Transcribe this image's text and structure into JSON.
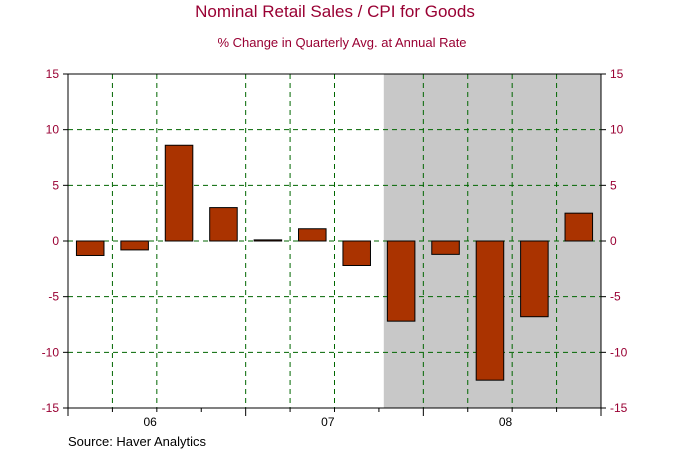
{
  "chart_data": {
    "type": "bar",
    "title": "Nominal Retail Sales / CPI for Goods",
    "subtitle": "% Change in Quarterly Avg. at Annual Rate",
    "source": "Source: Haver Analytics",
    "categories": [
      "2006Q1",
      "2006Q2",
      "2006Q3",
      "2006Q4",
      "2007Q1",
      "2007Q2",
      "2007Q3",
      "2007Q4",
      "2008Q1",
      "2008Q2",
      "2008Q3",
      "2008Q4"
    ],
    "values": [
      -1.3,
      -0.8,
      8.6,
      3.0,
      0.1,
      1.1,
      -2.2,
      -7.2,
      -1.2,
      -12.5,
      -6.8,
      2.5
    ],
    "ylim": [
      -15,
      15
    ],
    "yticks": [
      15,
      10,
      5,
      0,
      -5,
      -10,
      -15
    ],
    "ytick_labels": [
      "15",
      "10",
      "5",
      "0",
      "-5",
      "-10",
      "-15"
    ],
    "year_labels": [
      "06",
      "07",
      "08"
    ],
    "recession_shading": {
      "start": "2007Q4",
      "end": "2008Q4",
      "color": "#c8c8c8"
    },
    "bar_color": "#aa3300",
    "grid": true,
    "axis_color": "#990033"
  }
}
